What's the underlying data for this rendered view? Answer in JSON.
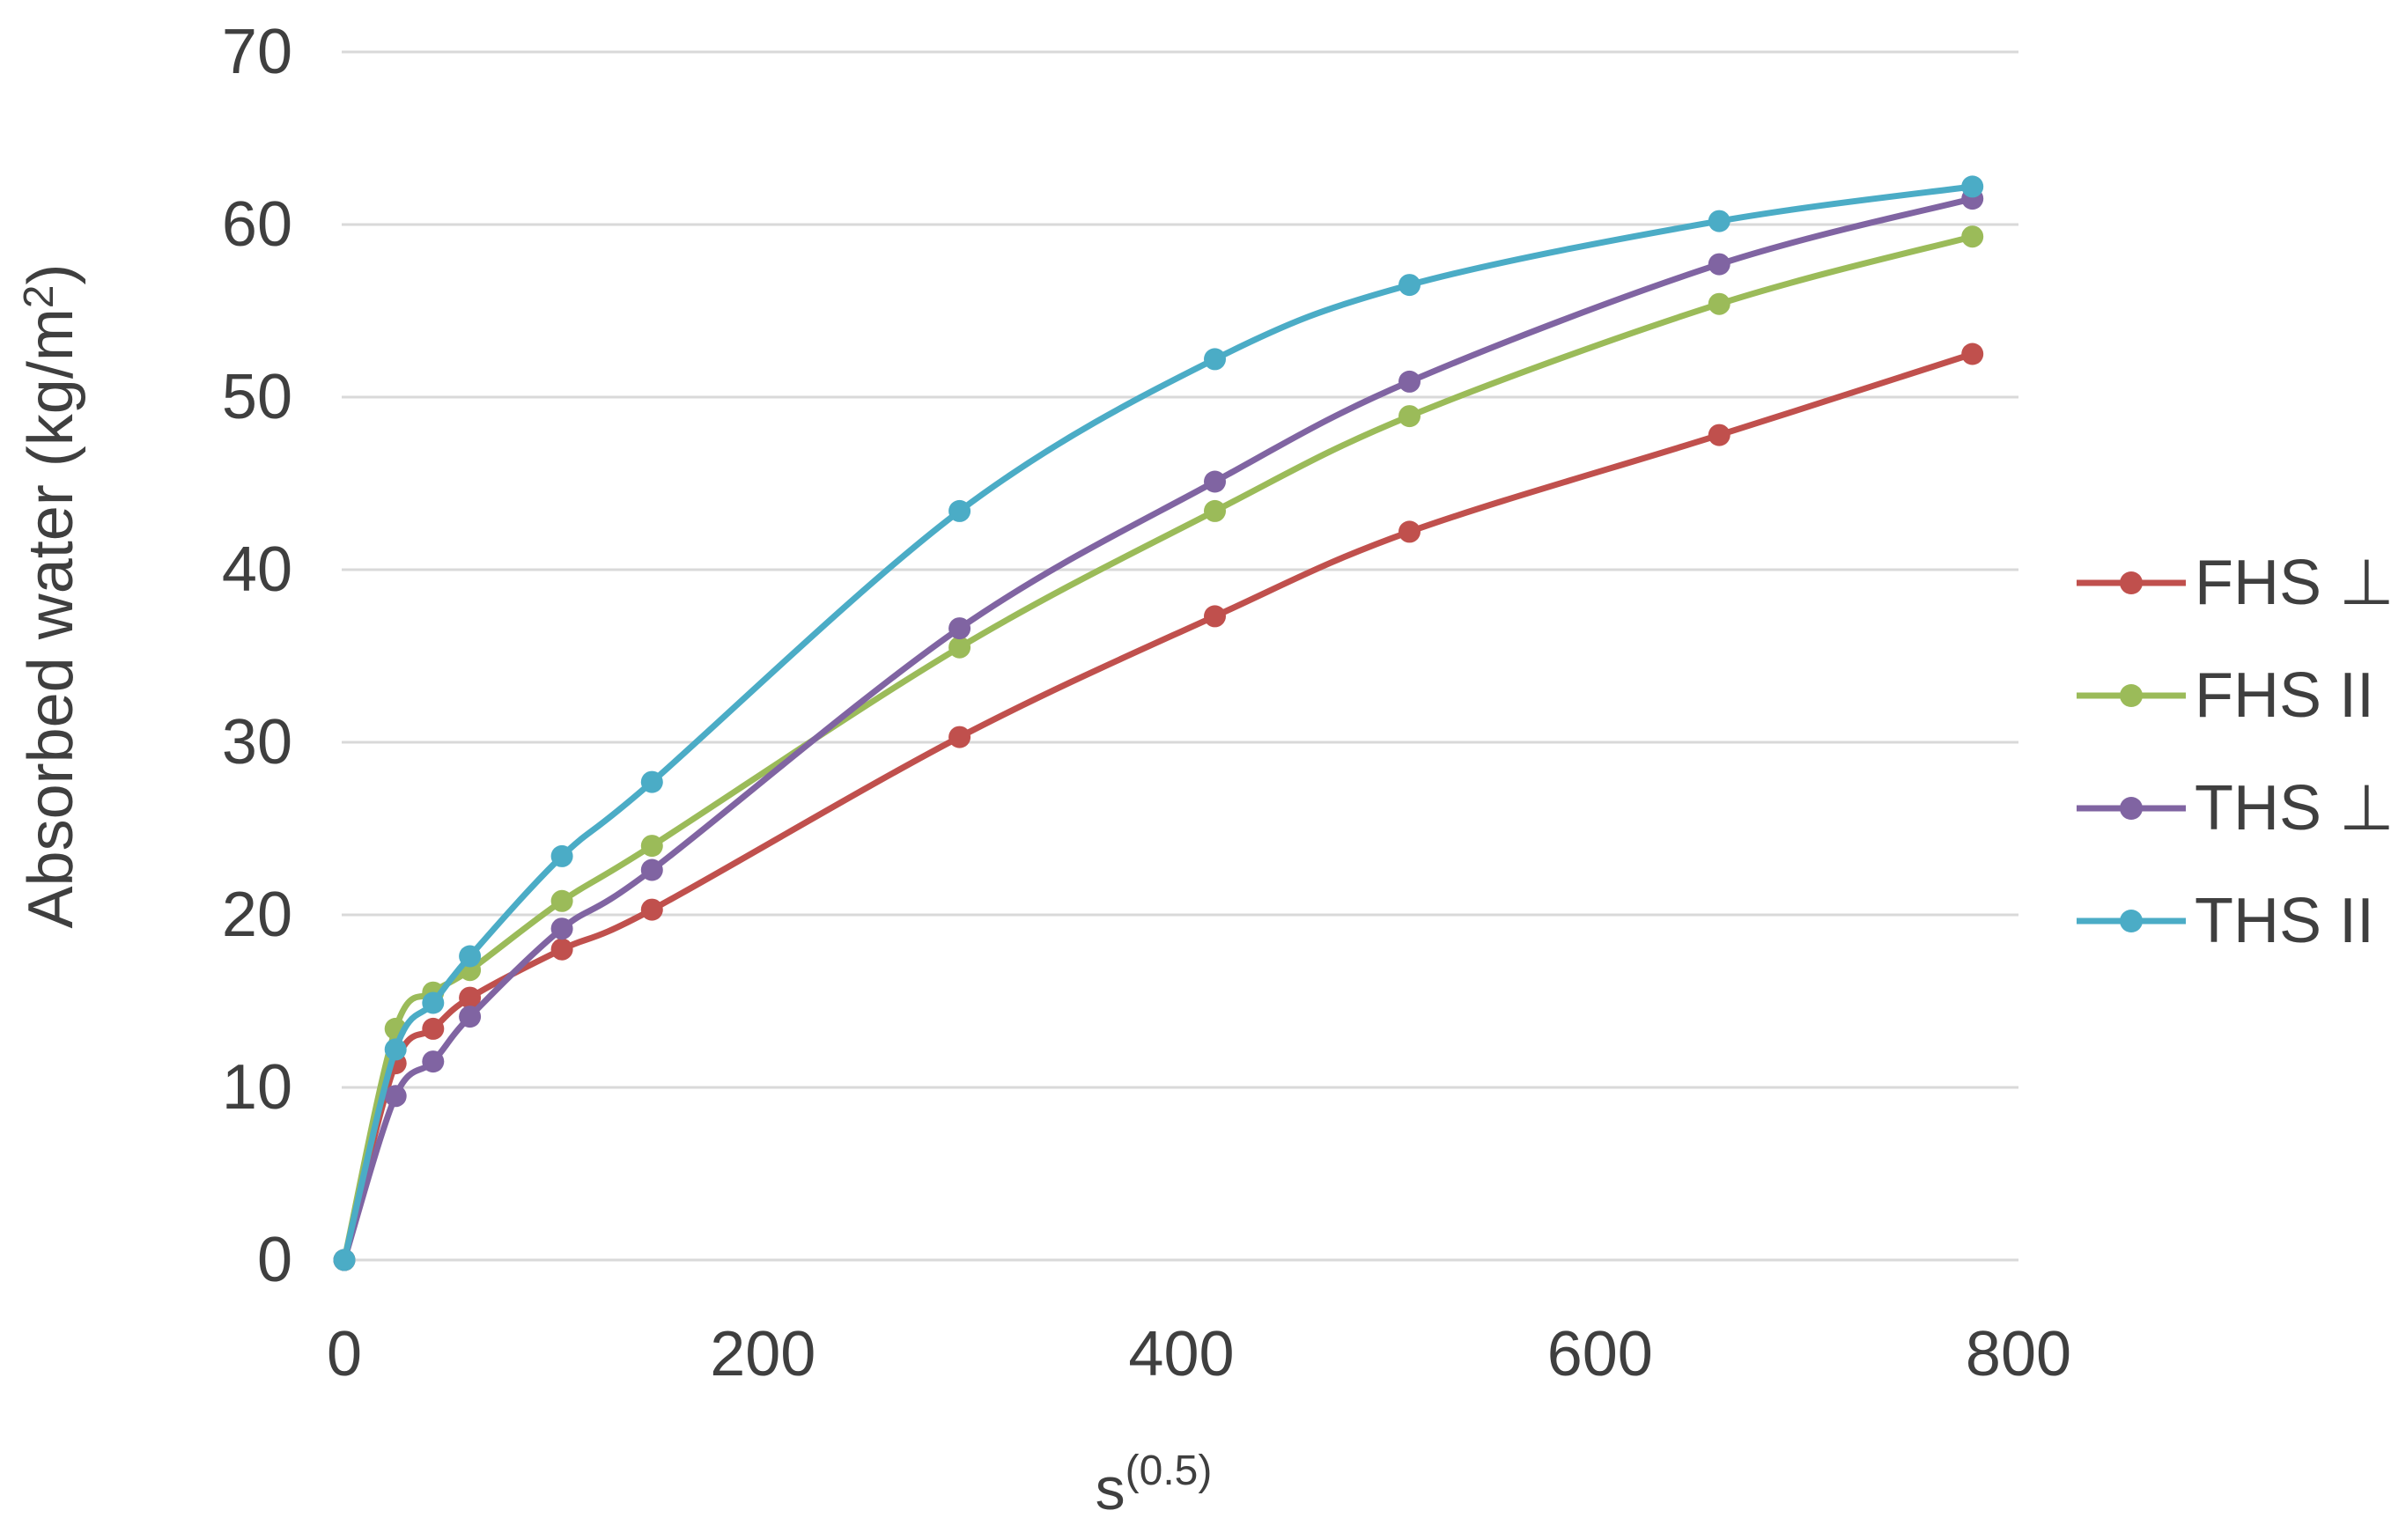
{
  "chart_data": {
    "type": "line",
    "title": "",
    "xlabel": {
      "base": "s",
      "superscript": "(0.5)"
    },
    "ylabel": {
      "main": "Absorbed water (kg/m",
      "superscript": "2",
      "close": ")"
    },
    "x_axis": {
      "min": 0,
      "max": 800,
      "ticks": [
        0,
        200,
        400,
        600,
        800
      ]
    },
    "y_axis": {
      "min": 0,
      "max": 70,
      "ticks": [
        0,
        10,
        20,
        30,
        40,
        50,
        60,
        70
      ]
    },
    "grid": "horizontal-only",
    "legend_position": "right-middle",
    "marker": "circle",
    "smooth": true,
    "x": [
      0,
      24.5,
      42.4,
      60,
      104,
      147,
      294,
      416,
      509,
      657,
      778
    ],
    "series": [
      {
        "name": "FHS ⊥",
        "key": "fhs-perp",
        "color": "#C0504D",
        "values": [
          0,
          11.4,
          13.4,
          15.2,
          18.0,
          20.3,
          30.3,
          37.3,
          42.2,
          47.8,
          52.5
        ]
      },
      {
        "name": "FHS II",
        "key": "fhs-par",
        "color": "#9BBB59",
        "values": [
          0,
          13.4,
          15.5,
          16.8,
          20.8,
          24.0,
          35.5,
          43.4,
          48.9,
          55.4,
          59.3
        ]
      },
      {
        "name": "THS ⊥",
        "key": "ths-perp",
        "color": "#8064A2",
        "values": [
          0,
          9.5,
          11.5,
          14.1,
          19.2,
          22.6,
          36.6,
          45.1,
          50.9,
          57.7,
          61.5
        ]
      },
      {
        "name": "THS II",
        "key": "ths-par",
        "color": "#4BACC6",
        "values": [
          0,
          12.2,
          14.9,
          17.6,
          23.4,
          27.7,
          43.4,
          52.2,
          56.5,
          60.2,
          62.2
        ]
      }
    ]
  },
  "colors": {
    "background": "#FFFFFF",
    "gridline": "#D9D9D9",
    "text": "#3F3F3F"
  }
}
